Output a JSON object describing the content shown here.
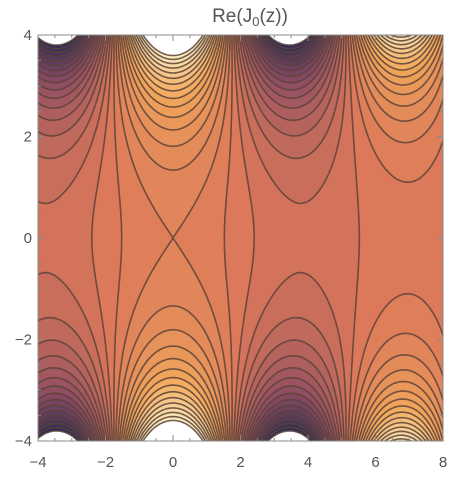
{
  "chart_data": {
    "type": "contour",
    "title": "Re(J₀(z))",
    "title_parts": {
      "prefix": "Re(J",
      "subscript": "0",
      "suffix": "(z))"
    },
    "function": "Re(J0(x + i y))",
    "xlim": [
      -4,
      8
    ],
    "ylim": [
      -4,
      4
    ],
    "x_ticks": [
      -4,
      -2,
      0,
      2,
      4,
      6,
      8
    ],
    "y_ticks": [
      -4,
      -2,
      0,
      2,
      4
    ],
    "x_tick_labels": [
      "−4",
      "−2",
      "0",
      "2",
      "4",
      "6",
      "8"
    ],
    "y_tick_labels": [
      "−4",
      "−2",
      "0",
      "2",
      "4"
    ],
    "minor_ticks": true,
    "grid": false,
    "legend": "none",
    "colors": {
      "low": "#2b2a55",
      "mid_low": "#8a4b62",
      "mid": "#d9765a",
      "mid_high": "#f2a75a",
      "high": "#fbf0c4",
      "clipped": "#ffffff",
      "contour_line": "#5a4238",
      "frame": "#8a8a8a",
      "text": "#555555"
    }
  }
}
